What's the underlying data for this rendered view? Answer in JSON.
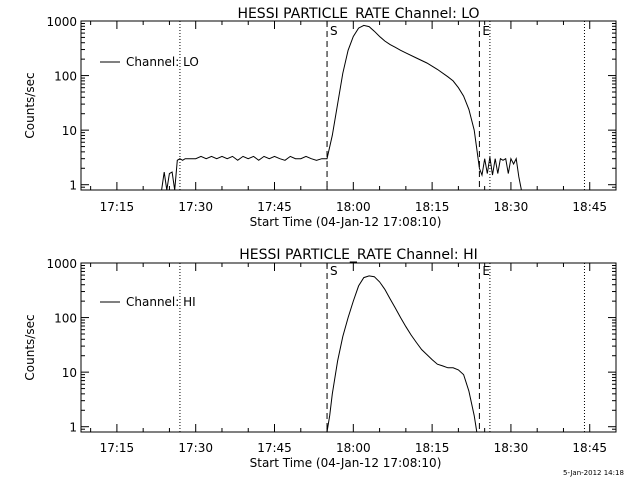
{
  "footer": {
    "timestamp": "5-Jan-2012 14:18"
  },
  "chart_data": [
    {
      "type": "line",
      "title": "HESSI PARTICLE_RATE Channel: LO",
      "xlabel": "Start Time (04-Jan-12 17:08:10)",
      "ylabel": "Counts/sec",
      "yscale": "log",
      "ylim": [
        0.8,
        1000
      ],
      "y_ticks": [
        1,
        10,
        100,
        1000
      ],
      "y_tick_labels": [
        "1",
        "10",
        "100",
        "1000"
      ],
      "xlim": [
        "17:08:10",
        "18:50:00"
      ],
      "x_ticks": [
        "17:15",
        "17:30",
        "17:45",
        "18:00",
        "18:15",
        "18:30",
        "18:45"
      ],
      "legend": {
        "position": "top-left",
        "entries": [
          "Channel: LO"
        ]
      },
      "markers": [
        {
          "time": "17:27",
          "style": "dotted",
          "label": ""
        },
        {
          "time": "17:55",
          "style": "dashed",
          "label": "S"
        },
        {
          "time": "18:24",
          "style": "dashed",
          "label": "E"
        },
        {
          "time": "18:26",
          "style": "dotted",
          "label": ""
        },
        {
          "time": "18:44",
          "style": "dotted",
          "label": ""
        }
      ],
      "series": [
        {
          "name": "Channel: LO",
          "x": [
            "17:23:30",
            "17:24:00",
            "17:24:30",
            "17:25:00",
            "17:25:30",
            "17:26:00",
            "17:26:30",
            "17:27:00",
            "17:27:30",
            "17:28:00",
            "17:30:00",
            "17:31:00",
            "17:32:00",
            "17:33:00",
            "17:34:00",
            "17:35:00",
            "17:36:00",
            "17:37:00",
            "17:38:00",
            "17:39:00",
            "17:40:00",
            "17:41:00",
            "17:42:00",
            "17:43:00",
            "17:44:00",
            "17:45:00",
            "17:46:00",
            "17:47:00",
            "17:48:00",
            "17:49:00",
            "17:50:00",
            "17:51:00",
            "17:52:00",
            "17:53:00",
            "17:54:00",
            "17:55:00",
            "17:56:00",
            "17:57:00",
            "17:58:00",
            "17:59:00",
            "18:00:00",
            "18:01:00",
            "18:02:00",
            "18:03:00",
            "18:04:00",
            "18:05:00",
            "18:06:00",
            "18:07:00",
            "18:08:00",
            "18:09:00",
            "18:10:00",
            "18:12:00",
            "18:14:00",
            "18:16:00",
            "18:18:00",
            "18:19:00",
            "18:20:00",
            "18:21:00",
            "18:22:00",
            "18:23:00",
            "18:23:30",
            "18:24:00",
            "18:24:30",
            "18:25:00",
            "18:25:30",
            "18:26:00",
            "18:26:30",
            "18:27:00",
            "18:27:30",
            "18:28:00",
            "18:28:30",
            "18:29:00",
            "18:29:30",
            "18:30:00",
            "18:30:30",
            "18:31:00",
            "18:31:30",
            "18:32:00"
          ],
          "values": [
            0.8,
            1.7,
            0.8,
            1.6,
            1.7,
            0.8,
            2.8,
            3.0,
            2.8,
            3.0,
            3.0,
            3.3,
            3.0,
            3.3,
            3.0,
            3.3,
            3.0,
            3.3,
            2.8,
            3.3,
            3.0,
            3.3,
            2.8,
            3.3,
            3.0,
            3.3,
            3.0,
            2.8,
            3.3,
            3.0,
            3.0,
            3.3,
            3.0,
            2.8,
            3.0,
            3.0,
            8,
            30,
            110,
            290,
            520,
            740,
            830,
            790,
            650,
            520,
            430,
            370,
            330,
            290,
            260,
            210,
            170,
            130,
            95,
            80,
            60,
            42,
            24,
            10,
            4.5,
            2.0,
            1.5,
            3.0,
            1.6,
            3.2,
            1.5,
            3.0,
            1.6,
            3.0,
            2.8,
            3.0,
            1.6,
            3.0,
            2.4,
            3.0,
            1.4,
            0.8
          ]
        }
      ]
    },
    {
      "type": "line",
      "title": "HESSI PARTICLE_RATE Channel: HI",
      "xlabel": "Start Time (04-Jan-12 17:08:10)",
      "ylabel": "Counts/sec",
      "yscale": "log",
      "ylim": [
        0.8,
        1000
      ],
      "y_ticks": [
        1,
        10,
        100,
        1000
      ],
      "y_tick_labels": [
        "1",
        "10",
        "100",
        "1000"
      ],
      "xlim": [
        "17:08:10",
        "18:50:00"
      ],
      "x_ticks": [
        "17:15",
        "17:30",
        "17:45",
        "18:00",
        "18:15",
        "18:30",
        "18:45"
      ],
      "legend": {
        "position": "top-left",
        "entries": [
          "Channel: HI"
        ]
      },
      "markers": [
        {
          "time": "17:27",
          "style": "dotted",
          "label": ""
        },
        {
          "time": "17:55",
          "style": "dashed",
          "label": "S"
        },
        {
          "time": "18:24",
          "style": "dashed",
          "label": "E"
        },
        {
          "time": "18:26",
          "style": "dotted",
          "label": ""
        },
        {
          "time": "18:44",
          "style": "dotted",
          "label": ""
        }
      ],
      "series": [
        {
          "name": "Channel: HI",
          "x": [
            "17:55:00",
            "17:55:30",
            "17:56:00",
            "17:57:00",
            "17:58:00",
            "17:59:00",
            "18:00:00",
            "18:01:00",
            "18:02:00",
            "18:03:00",
            "18:04:00",
            "18:05:00",
            "18:06:00",
            "18:07:00",
            "18:08:00",
            "18:09:00",
            "18:10:00",
            "18:11:00",
            "18:12:00",
            "18:13:00",
            "18:14:00",
            "18:15:00",
            "18:16:00",
            "18:17:00",
            "18:18:00",
            "18:19:00",
            "18:20:00",
            "18:21:00",
            "18:22:00",
            "18:23:00",
            "18:23:30"
          ],
          "values": [
            0.8,
            1.6,
            4,
            16,
            45,
            100,
            200,
            380,
            540,
            580,
            560,
            450,
            330,
            220,
            150,
            100,
            68,
            48,
            35,
            26,
            21,
            17,
            14,
            13,
            12,
            12,
            11,
            9,
            4.5,
            1.6,
            0.8
          ]
        }
      ]
    }
  ]
}
